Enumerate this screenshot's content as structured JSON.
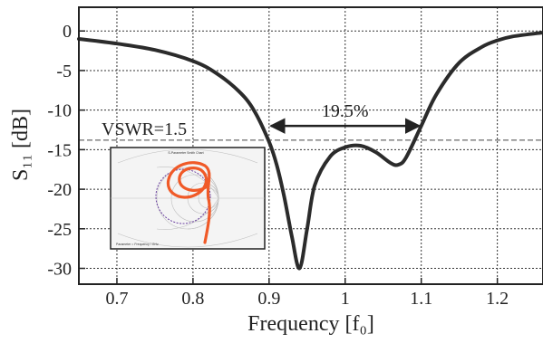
{
  "chart_data": {
    "type": "line",
    "title": "",
    "xlabel": "Frequency  [f₀]",
    "ylabel": "S₁₁  [dB]",
    "xlim": [
      0.65,
      1.26
    ],
    "ylim": [
      -32,
      3
    ],
    "xticks": [
      0.7,
      0.8,
      0.9,
      1.0,
      1.1,
      1.2
    ],
    "xtick_labels": [
      "0.7",
      "0.8",
      "0.9",
      "1",
      "1.1",
      "1.2"
    ],
    "yticks": [
      0,
      -5,
      -10,
      -15,
      -20,
      -25,
      -30
    ],
    "ytick_labels": [
      "0",
      "-5",
      "-10",
      "-15",
      "-20",
      "-25",
      "-30"
    ],
    "grid": true,
    "series": [
      {
        "name": "",
        "color": "#2b2b2b",
        "x": [
          0.65,
          0.7,
          0.75,
          0.8,
          0.83,
          0.86,
          0.88,
          0.9,
          0.91,
          0.92,
          0.93,
          0.94,
          0.95,
          0.96,
          0.98,
          1.0,
          1.02,
          1.04,
          1.06,
          1.07,
          1.08,
          1.1,
          1.12,
          1.15,
          1.18,
          1.2,
          1.22,
          1.26
        ],
        "y": [
          -1.0,
          -1.6,
          -2.4,
          -3.8,
          -5.3,
          -7.6,
          -10.0,
          -14.0,
          -16.9,
          -21.0,
          -26.0,
          -30.0,
          -25.0,
          -19.5,
          -15.9,
          -14.7,
          -14.5,
          -15.3,
          -16.7,
          -16.9,
          -16.0,
          -12.0,
          -8.0,
          -4.0,
          -2.0,
          -1.2,
          -0.7,
          -0.2
        ]
      }
    ],
    "reference_line": {
      "label": "VSWR=1.5",
      "y": -13.8
    },
    "bandwidth_annotation": {
      "label": "19.5%",
      "x_start": 0.9,
      "x_end": 1.1,
      "y": -12
    },
    "inset": {
      "type": "smith-chart",
      "texts": [
        "S-Parameter Smith Chart",
        "Parameter = Frequency / GHz"
      ],
      "curve_color": "#f05a28"
    }
  }
}
